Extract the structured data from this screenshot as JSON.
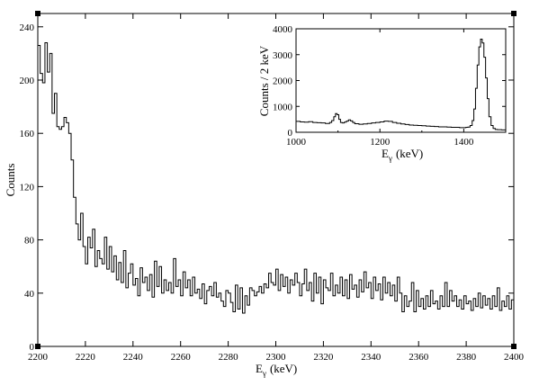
{
  "chart_data": [
    {
      "type": "line",
      "panel": "main",
      "title": "",
      "xlabel": "E",
      "xlabel_sub": "γ",
      "xlabel_unit": "(keV)",
      "ylabel": "Counts",
      "xlim": [
        2200,
        2400
      ],
      "ylim": [
        0,
        250
      ],
      "xticks": [
        2200,
        2220,
        2240,
        2260,
        2280,
        2300,
        2320,
        2340,
        2360,
        2380,
        2400
      ],
      "yticks": [
        0,
        40,
        80,
        120,
        160,
        200,
        240
      ],
      "grid": false,
      "step": true,
      "bin_width": 1,
      "x_start": 2200,
      "series": [
        {
          "values": [
            226,
            205,
            198,
            228,
            206,
            220,
            175,
            190,
            165,
            163,
            165,
            172,
            168,
            160,
            140,
            112,
            92,
            80,
            100,
            75,
            62,
            82,
            74,
            88,
            60,
            72,
            66,
            62,
            82,
            58,
            75,
            56,
            68,
            50,
            63,
            48,
            72,
            44,
            55,
            62,
            46,
            51,
            38,
            59,
            48,
            52,
            42,
            54,
            37,
            64,
            45,
            60,
            40,
            50,
            42,
            48,
            40,
            66,
            45,
            50,
            38,
            56,
            44,
            50,
            38,
            52,
            40,
            43,
            36,
            47,
            32,
            42,
            45,
            38,
            48,
            37,
            40,
            34,
            30,
            42,
            40,
            33,
            26,
            46,
            28,
            44,
            25,
            38,
            31,
            44,
            42,
            38,
            41,
            45,
            40,
            47,
            44,
            55,
            48,
            46,
            58,
            42,
            54,
            45,
            52,
            40,
            50,
            46,
            55,
            48,
            38,
            47,
            58,
            42,
            48,
            34,
            55,
            40,
            52,
            32,
            50,
            44,
            42,
            55,
            38,
            46,
            40,
            52,
            38,
            50,
            36,
            54,
            43,
            46,
            37,
            50,
            41,
            56,
            44,
            48,
            36,
            52,
            42,
            47,
            35,
            52,
            40,
            48,
            38,
            46,
            34,
            52,
            40,
            26,
            38,
            30,
            34,
            48,
            26,
            42,
            30,
            36,
            28,
            38,
            30,
            42,
            32,
            34,
            28,
            38,
            30,
            48,
            30,
            42,
            34,
            38,
            30,
            35,
            28,
            38,
            32,
            34,
            27,
            36,
            30,
            40,
            29,
            38,
            31,
            36,
            28,
            38,
            30,
            44,
            27,
            34,
            30,
            38,
            28,
            35,
            31
          ]
        }
      ]
    },
    {
      "type": "line",
      "panel": "inset",
      "title": "",
      "xlabel": "E",
      "xlabel_sub": "γ",
      "xlabel_unit": "(keV)",
      "ylabel": "Counts / 2 keV",
      "xlim": [
        1000,
        1500
      ],
      "ylim": [
        0,
        4000
      ],
      "xticks": [
        1000,
        1200,
        1400
      ],
      "xticks_minor": [
        1100,
        1300
      ],
      "yticks": [
        0,
        1000,
        2000,
        3000,
        4000
      ],
      "grid": false,
      "step": true,
      "series": [
        {
          "x": [
            1000,
            1010,
            1020,
            1030,
            1040,
            1050,
            1060,
            1070,
            1080,
            1085,
            1090,
            1094,
            1098,
            1102,
            1106,
            1110,
            1115,
            1120,
            1125,
            1130,
            1135,
            1140,
            1150,
            1160,
            1170,
            1180,
            1190,
            1200,
            1210,
            1220,
            1230,
            1240,
            1250,
            1260,
            1270,
            1280,
            1290,
            1300,
            1310,
            1320,
            1330,
            1340,
            1350,
            1360,
            1370,
            1380,
            1390,
            1400,
            1405,
            1410,
            1415,
            1420,
            1424,
            1428,
            1432,
            1436,
            1440,
            1444,
            1448,
            1452,
            1456,
            1460,
            1465,
            1470,
            1475,
            1480,
            1490,
            1500
          ],
          "values": [
            420,
            400,
            390,
            410,
            380,
            370,
            360,
            340,
            380,
            450,
            600,
            720,
            680,
            500,
            380,
            360,
            390,
            430,
            480,
            440,
            380,
            330,
            310,
            320,
            340,
            360,
            380,
            400,
            430,
            420,
            380,
            350,
            320,
            300,
            280,
            270,
            260,
            250,
            240,
            230,
            220,
            210,
            210,
            200,
            190,
            190,
            180,
            180,
            190,
            200,
            260,
            450,
            900,
            1700,
            2600,
            3300,
            3600,
            3450,
            2900,
            2100,
            1300,
            600,
            260,
            150,
            110,
            100,
            90,
            90
          ]
        }
      ]
    }
  ]
}
